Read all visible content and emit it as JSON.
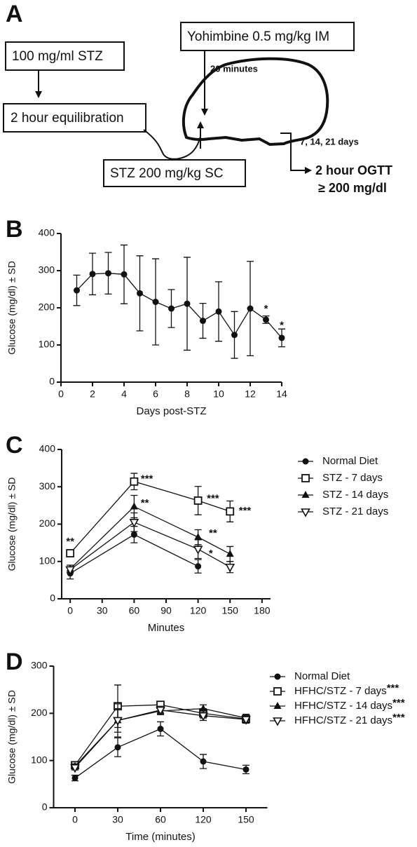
{
  "panel_a": {
    "label": "A",
    "stz_stock": "100 mg/ml STZ",
    "equilibration": "2 hour equilibration",
    "stz_dose": "STZ 200 mg/kg SC",
    "yohimbine": "Yohimbine 0.5 mg/kg IM",
    "wait": "20 minutes",
    "days": "7, 14, 21 days",
    "ogtt": "2 hour OGTT",
    "threshold": "≥ 200 mg/dl"
  },
  "chart_data": [
    {
      "type": "line",
      "label": "B",
      "xlabel": "Days post-STZ",
      "ylabel": "Glucose (mg/dl) ± SD",
      "x": [
        1,
        2,
        3,
        4,
        5,
        6,
        7,
        8,
        9,
        10,
        11,
        12,
        13,
        14
      ],
      "series": [
        {
          "color": "#111111",
          "marker": "circle",
          "values": [
            247,
            291,
            293,
            290,
            239,
            216,
            198,
            211,
            165,
            190,
            127,
            198,
            168,
            119
          ],
          "errors": [
            41,
            56,
            56,
            79,
            101,
            116,
            51,
            125,
            47,
            80,
            63,
            127,
            10,
            24
          ]
        }
      ],
      "annotations": [
        {
          "text": "*",
          "x": 13,
          "y": 196
        },
        {
          "text": "*",
          "x": 14,
          "y": 152
        }
      ],
      "xlim": [
        0,
        14
      ],
      "xticks": [
        0,
        2,
        4,
        6,
        8,
        10,
        12,
        14
      ],
      "ylim": [
        0,
        400
      ],
      "yticks": [
        0,
        100,
        200,
        300,
        400
      ]
    },
    {
      "type": "line",
      "label": "C",
      "xlabel": "Minutes",
      "ylabel": "Glucose (mg/dl) ± SD",
      "legend": "right",
      "x": [
        0,
        60,
        120,
        150
      ],
      "series": [
        {
          "name": "Normal Diet",
          "color": "#111111",
          "marker": "circle",
          "values": [
            68,
            172,
            87,
            null
          ],
          "errors": [
            15,
            22,
            18,
            null
          ]
        },
        {
          "name": "STZ - 7 days",
          "color": "#111111",
          "marker": "square-open",
          "values": [
            122,
            314,
            263,
            234
          ],
          "errors": [
            8,
            22,
            38,
            28
          ]
        },
        {
          "name": "STZ - 14 days",
          "color": "#111111",
          "marker": "triangle",
          "values": [
            80,
            247,
            165,
            120
          ],
          "errors": [
            10,
            30,
            20,
            20
          ]
        },
        {
          "name": "STZ - 21 days",
          "color": "#111111",
          "marker": "triangle-down-open",
          "values": [
            78,
            205,
            133,
            85
          ],
          "errors": [
            8,
            25,
            25,
            15
          ]
        }
      ],
      "annotations": [
        {
          "text": "**",
          "x": 0,
          "y": 152
        },
        {
          "text": "***",
          "x": 72,
          "y": 320
        },
        {
          "text": "**",
          "x": 70,
          "y": 255
        },
        {
          "text": "***",
          "x": 134,
          "y": 268
        },
        {
          "text": "**",
          "x": 134,
          "y": 175
        },
        {
          "text": "*",
          "x": 132,
          "y": 120
        },
        {
          "text": "***",
          "x": 164,
          "y": 235
        }
      ],
      "xlim": [
        -8,
        188
      ],
      "xticks": [
        0,
        30,
        60,
        90,
        120,
        150,
        180
      ],
      "ylim": [
        0,
        400
      ],
      "yticks": [
        0,
        100,
        200,
        300,
        400
      ]
    },
    {
      "type": "line",
      "label": "D",
      "xlabel": "Time (minutes)",
      "ylabel": "Glucose (mg/dl) ± SD",
      "legend": "right",
      "categories": [
        "0",
        "30",
        "60",
        "120",
        "150"
      ],
      "series": [
        {
          "name": "Normal Diet",
          "color": "#111111",
          "marker": "circle",
          "values": [
            63,
            128,
            167,
            98,
            81
          ],
          "errors": [
            6,
            20,
            15,
            15,
            9
          ]
        },
        {
          "name": "HFHC/STZ - 7 days",
          "significance": "***",
          "color": "#111111",
          "marker": "square-open",
          "values": [
            90,
            215,
            218,
            200,
            188
          ],
          "errors": [
            5,
            45,
            5,
            10,
            8
          ]
        },
        {
          "name": "HFHC/STZ - 14 days",
          "significance": "***",
          "color": "#111111",
          "marker": "triangle",
          "values": [
            88,
            185,
            205,
            210,
            190
          ],
          "errors": [
            5,
            35,
            8,
            8,
            8
          ]
        },
        {
          "name": "HFHC/STZ - 21 days",
          "significance": "***",
          "color": "#111111",
          "marker": "triangle-down-open",
          "values": [
            85,
            185,
            207,
            195,
            187
          ],
          "errors": [
            5,
            25,
            8,
            10,
            8
          ]
        }
      ],
      "ylim": [
        0,
        300
      ],
      "yticks": [
        0,
        100,
        200,
        300
      ]
    }
  ]
}
